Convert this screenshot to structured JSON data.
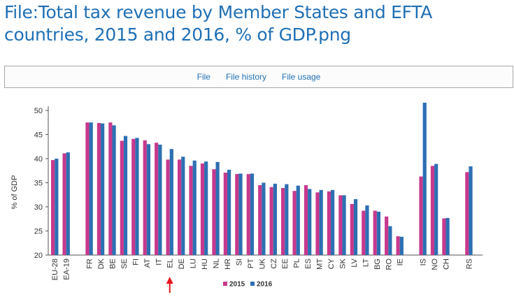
{
  "page": {
    "title": "File:Total tax revenue by Member States and EFTA countries, 2015 and 2016, % of GDP.png"
  },
  "tabs": [
    {
      "label": "File"
    },
    {
      "label": "File history"
    },
    {
      "label": "File usage"
    }
  ],
  "chart_data": {
    "type": "bar",
    "title": "",
    "xlabel": "",
    "ylabel": "% of GDP",
    "ylim": [
      20,
      50
    ],
    "yticks": [
      20,
      25,
      30,
      35,
      40,
      45,
      50
    ],
    "grid": false,
    "legend_position": "bottom",
    "colors": {
      "2015": "#c7398d",
      "2016": "#2d6fb3",
      "arrow": "#e8141b"
    },
    "highlight_category": "EL",
    "groups": [
      [
        "EU-28",
        "EA-19"
      ],
      [
        "FR",
        "DK",
        "BE",
        "SE",
        "FI",
        "AT",
        "IT",
        "EL",
        "DE",
        "LU",
        "HU",
        "NL",
        "HR",
        "SI",
        "PT",
        "UK",
        "CZ",
        "EE",
        "PL",
        "ES",
        "MT",
        "CY",
        "SK",
        "LV",
        "LT",
        "BG",
        "RO",
        "IE"
      ],
      [
        "IS",
        "NO",
        "CH"
      ],
      [
        "RS"
      ]
    ],
    "categories": [
      "EU-28",
      "EA-19",
      "FR",
      "DK",
      "BE",
      "SE",
      "FI",
      "AT",
      "IT",
      "EL",
      "DE",
      "LU",
      "HU",
      "NL",
      "HR",
      "SI",
      "PT",
      "UK",
      "CZ",
      "EE",
      "PL",
      "ES",
      "MT",
      "CY",
      "SK",
      "LV",
      "LT",
      "BG",
      "RO",
      "IE",
      "IS",
      "NO",
      "CH",
      "RS"
    ],
    "series": [
      {
        "name": "2015",
        "values": [
          39.7,
          41.1,
          47.5,
          47.4,
          47.5,
          43.7,
          44.1,
          43.8,
          43.3,
          39.8,
          39.8,
          38.5,
          39.0,
          37.8,
          37.1,
          36.8,
          36.8,
          34.5,
          34.1,
          33.9,
          33.3,
          34.5,
          33.0,
          33.2,
          32.4,
          30.6,
          29.2,
          29.2,
          28.0,
          23.9,
          36.3,
          38.5,
          27.6,
          37.2
        ]
      },
      {
        "name": "2016",
        "values": [
          40.0,
          41.3,
          47.5,
          47.3,
          46.9,
          44.7,
          44.3,
          43.0,
          42.9,
          42.0,
          40.4,
          39.6,
          39.4,
          39.3,
          37.7,
          36.9,
          36.9,
          35.0,
          34.8,
          34.7,
          34.4,
          33.7,
          33.5,
          33.5,
          32.4,
          31.6,
          30.3,
          29.0,
          26.0,
          23.8,
          51.6,
          38.9,
          27.7,
          38.4
        ]
      }
    ]
  }
}
